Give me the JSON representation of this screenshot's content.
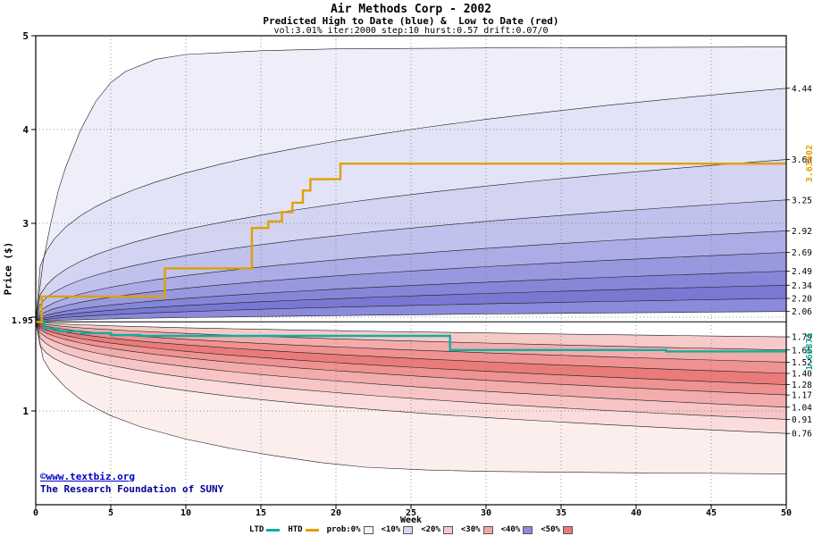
{
  "title": {
    "line1": "Air Methods Corp - 2002",
    "line2": "Predicted High to Date (blue) &  Low to Date (red)",
    "line3": "vol:3.01% iter:2000 step:10 hurst:0.57 drift:0.07/0"
  },
  "axes": {
    "x_label": "Week",
    "y_label": "Price ($)",
    "x_ticks": [
      0,
      5,
      10,
      15,
      20,
      25,
      30,
      35,
      40,
      45,
      50
    ],
    "y_ticks": [
      1,
      2,
      3,
      4,
      5
    ],
    "x_range": [
      0,
      50
    ],
    "y_range": [
      0,
      5
    ]
  },
  "start_price_label": "1.95",
  "chart_data": {
    "type": "area",
    "title": "Air Methods Corp - 2002",
    "subtitle": "Predicted High to Date (blue) & Low to Date (red)",
    "params": "vol:3.01% iter:2000 step:10 hurst:0.57 drift:0.07/0",
    "xlabel": "Week",
    "ylabel": "Price ($)",
    "xlim": [
      0,
      50
    ],
    "ylim": [
      0,
      5
    ],
    "grid": true,
    "start": 1.95,
    "upper_envelope": {
      "points": [
        [
          0,
          1.95
        ],
        [
          0.5,
          2.6
        ],
        [
          1,
          3.0
        ],
        [
          1.5,
          3.35
        ],
        [
          2,
          3.6
        ],
        [
          3,
          4.0
        ],
        [
          4,
          4.3
        ],
        [
          5,
          4.5
        ],
        [
          6,
          4.62
        ],
        [
          8,
          4.75
        ],
        [
          10,
          4.8
        ],
        [
          15,
          4.84
        ],
        [
          20,
          4.86
        ],
        [
          30,
          4.87
        ],
        [
          50,
          4.88
        ]
      ]
    },
    "upper_curves": [
      {
        "end": 4.44,
        "p": 0.28
      },
      {
        "end": 3.68,
        "p": 0.35
      },
      {
        "end": 3.25,
        "p": 0.38
      },
      {
        "end": 2.92,
        "p": 0.42
      },
      {
        "end": 2.69,
        "p": 0.45
      },
      {
        "end": 2.49,
        "p": 0.48
      },
      {
        "end": 2.34,
        "p": 0.5
      },
      {
        "end": 2.2,
        "p": 0.52
      },
      {
        "end": 2.06,
        "p": 0.55
      }
    ],
    "upper_band_colors": [
      "#eeeefa",
      "#e3e3f7",
      "#d3d3f2",
      "#c1c1ed",
      "#acace6",
      "#9898df",
      "#8686d9",
      "#7979d3",
      "#8b8bdb"
    ],
    "lower_curves": [
      {
        "end": 1.79,
        "p": 0.58
      },
      {
        "end": 1.65,
        "p": 0.55
      },
      {
        "end": 1.52,
        "p": 0.52
      },
      {
        "end": 1.4,
        "p": 0.5
      },
      {
        "end": 1.28,
        "p": 0.47
      },
      {
        "end": 1.17,
        "p": 0.44
      },
      {
        "end": 1.04,
        "p": 0.4
      },
      {
        "end": 0.91,
        "p": 0.35
      },
      {
        "end": 0.76,
        "p": 0.3
      }
    ],
    "lower_envelope": {
      "points": [
        [
          0,
          1.95
        ],
        [
          0.5,
          1.55
        ],
        [
          1,
          1.42
        ],
        [
          2,
          1.25
        ],
        [
          3,
          1.12
        ],
        [
          4,
          1.03
        ],
        [
          5,
          0.95
        ],
        [
          7,
          0.83
        ],
        [
          10,
          0.7
        ],
        [
          13,
          0.6
        ],
        [
          16,
          0.52
        ],
        [
          19,
          0.45
        ],
        [
          22,
          0.4
        ],
        [
          26,
          0.37
        ],
        [
          30,
          0.355
        ],
        [
          40,
          0.34
        ],
        [
          50,
          0.33
        ]
      ]
    },
    "lower_band_colors": [
      "#f7caca",
      "#f3acac",
      "#ef9292",
      "#ea7b7b",
      "#ef9292",
      "#f3acac",
      "#f7c5c5",
      "#fbdcdc",
      "#fdeeee"
    ],
    "htd": {
      "label": "HTD",
      "color": "#e0a000",
      "final_label": "3.63602",
      "steps": [
        [
          0,
          1.95
        ],
        [
          0.4,
          2.22
        ],
        [
          8.6,
          2.52
        ],
        [
          14.4,
          2.95
        ],
        [
          15.5,
          3.02
        ],
        [
          16.4,
          3.12
        ],
        [
          17.1,
          3.22
        ],
        [
          17.8,
          3.35
        ],
        [
          18.3,
          3.47
        ],
        [
          20.3,
          3.636
        ]
      ]
    },
    "ltd": {
      "label": "LTD",
      "color": "#10ae9e",
      "final_label": "1.63371",
      "steps": [
        [
          0,
          1.95
        ],
        [
          0.6,
          1.88
        ],
        [
          1.5,
          1.85
        ],
        [
          3,
          1.83
        ],
        [
          5,
          1.81
        ],
        [
          7,
          1.8
        ],
        [
          27.6,
          1.65
        ],
        [
          42,
          1.634
        ]
      ]
    },
    "right_labels": [
      "4.44",
      "3.68",
      "3.25",
      "2.92",
      "2.69",
      "2.49",
      "2.34",
      "2.20",
      "2.06",
      "1.79",
      "1.65",
      "1.52",
      "1.40",
      "1.28",
      "1.17",
      "1.04",
      "0.91",
      "0.76"
    ]
  },
  "legend": {
    "items": [
      {
        "label": "LTD",
        "swatch": "line",
        "color": "#10ae9e"
      },
      {
        "label": "HTD",
        "swatch": "line",
        "color": "#e0a000"
      },
      {
        "label": "prob:0%",
        "swatch": "box",
        "color": "#f4f4fb"
      },
      {
        "label": "<10%",
        "swatch": "box",
        "color": "#d8d8f3"
      },
      {
        "label": "<20%",
        "swatch": "box",
        "color": "#f7caca"
      },
      {
        "label": "<30%",
        "swatch": "box",
        "color": "#f3a8a8"
      },
      {
        "label": "<40%",
        "swatch": "box",
        "color": "#8c8cdb"
      },
      {
        "label": "<50%",
        "swatch": "box",
        "color": "#ea7b7b"
      }
    ]
  },
  "footer": {
    "copyright": "©www.textbiz.org",
    "org": "The Research Foundation of SUNY"
  }
}
